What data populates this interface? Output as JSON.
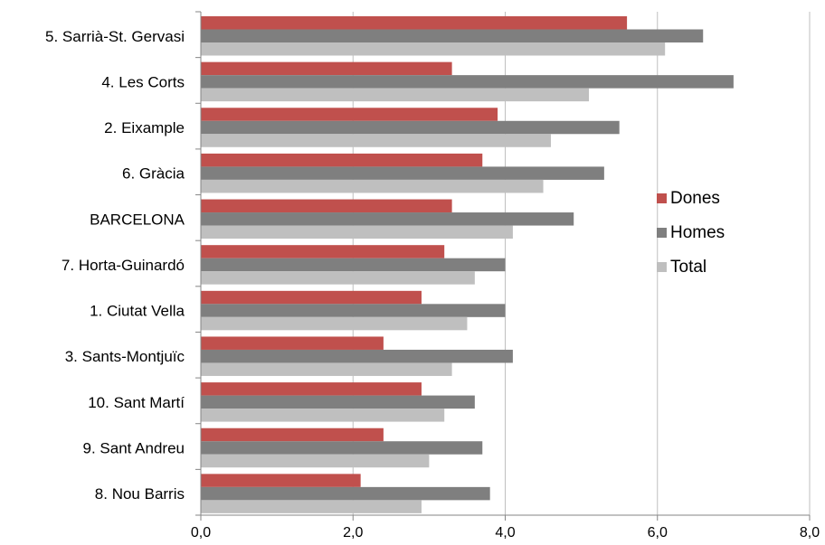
{
  "chart_data": {
    "type": "bar",
    "orientation": "horizontal",
    "categories": [
      "5. Sarrià-St. Gervasi",
      "4. Les Corts",
      "2. Eixample",
      "6. Gràcia",
      "BARCELONA",
      "7. Horta-Guinardó",
      "1. Ciutat Vella",
      "3. Sants-Montjuïc",
      "10. Sant Martí",
      "9. Sant Andreu",
      "8. Nou Barris"
    ],
    "series": [
      {
        "name": "Dones",
        "color": "#c0504d",
        "values": [
          5.6,
          3.3,
          3.9,
          3.7,
          3.3,
          3.2,
          2.9,
          2.4,
          2.9,
          2.4,
          2.1
        ]
      },
      {
        "name": "Homes",
        "color": "#7f7f7f",
        "values": [
          6.6,
          7.0,
          5.5,
          5.3,
          4.9,
          4.0,
          4.0,
          4.1,
          3.6,
          3.7,
          3.8
        ]
      },
      {
        "name": "Total",
        "color": "#bfbfbf",
        "values": [
          6.1,
          5.1,
          4.6,
          4.5,
          4.1,
          3.6,
          3.5,
          3.3,
          3.2,
          3.0,
          2.9
        ]
      }
    ],
    "xlim": [
      0,
      8
    ],
    "xticks": [
      "0,0",
      "2,0",
      "4,0",
      "6,0",
      "8,0"
    ],
    "grid": true,
    "legend_position": "right"
  }
}
